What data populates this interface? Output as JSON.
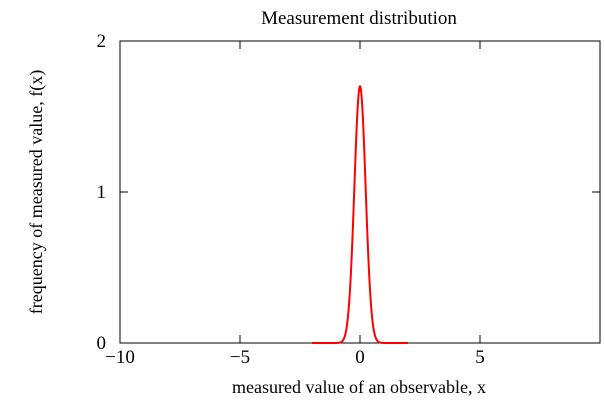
{
  "chart_data": {
    "type": "line",
    "title": "Measurement distribution",
    "xlabel": "measured value of an observable, x",
    "ylabel": "frequency of measured value, f(x)",
    "xlim": [
      -10,
      10
    ],
    "ylim": [
      0,
      2
    ],
    "x_ticks": [
      -10,
      -5,
      0,
      5
    ],
    "x_tick_labels": [
      "−10",
      "−5",
      "0",
      "5"
    ],
    "y_ticks": [
      0,
      1,
      2
    ],
    "y_tick_labels": [
      "0",
      "1",
      "2"
    ],
    "grid": false,
    "legend": "none",
    "series": [
      {
        "color": "#ff0000",
        "distribution": "gaussian",
        "mean": 0.0,
        "sigma": 0.235,
        "peak": 1.7,
        "x_range": [
          -2,
          2
        ]
      }
    ]
  }
}
